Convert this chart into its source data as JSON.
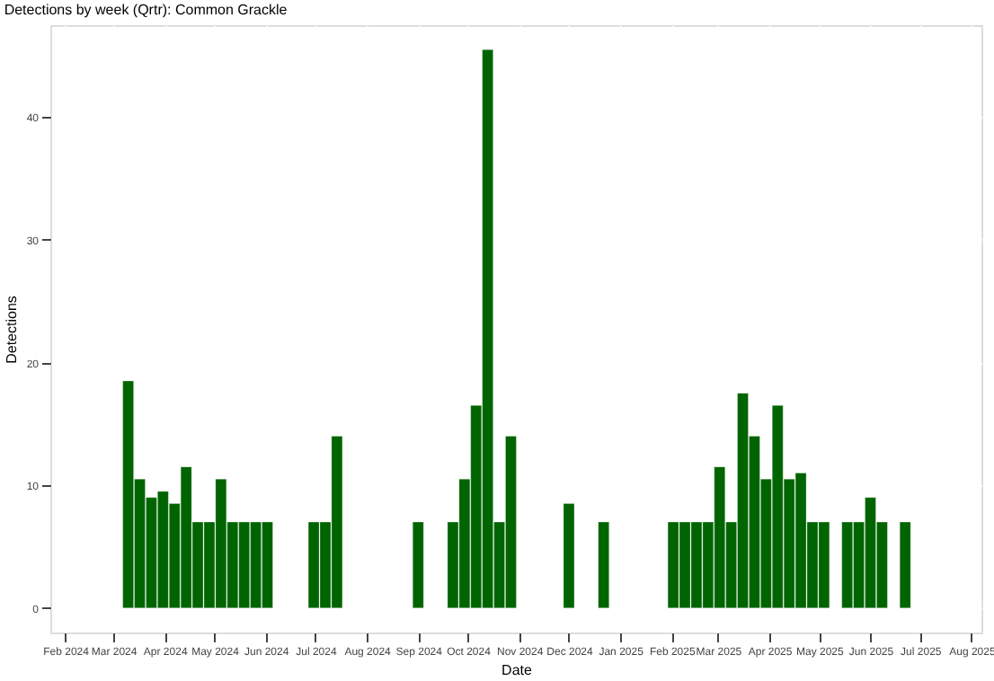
{
  "chart_data": {
    "type": "bar",
    "title": "Detections by week (Qrtr): Common Grackle",
    "xlabel": "Date",
    "ylabel": "Detections",
    "x": [
      "2024-03-10",
      "2024-03-17",
      "2024-03-24",
      "2024-03-31",
      "2024-04-07",
      "2024-04-14",
      "2024-04-21",
      "2024-04-28",
      "2024-05-05",
      "2024-05-12",
      "2024-05-19",
      "2024-05-26",
      "2024-06-02",
      "2024-06-30",
      "2024-07-07",
      "2024-07-14",
      "2024-09-01",
      "2024-09-22",
      "2024-09-29",
      "2024-10-06",
      "2024-10-13",
      "2024-10-20",
      "2024-10-27",
      "2024-12-01",
      "2024-12-22",
      "2025-02-02",
      "2025-02-09",
      "2025-02-16",
      "2025-02-23",
      "2025-03-02",
      "2025-03-09",
      "2025-03-16",
      "2025-03-23",
      "2025-03-30",
      "2025-04-06",
      "2025-04-13",
      "2025-04-20",
      "2025-04-27",
      "2025-05-04",
      "2025-05-18",
      "2025-05-25",
      "2025-06-01",
      "2025-06-08",
      "2025-06-22"
    ],
    "values": [
      18.5,
      10.5,
      9,
      9.5,
      8.5,
      11.5,
      7,
      7,
      10.5,
      7,
      7,
      7,
      7,
      7,
      7,
      14,
      7,
      7,
      10.5,
      16.5,
      45.5,
      7,
      14,
      8.5,
      7,
      7,
      7,
      7,
      7,
      11.5,
      7,
      17.5,
      14,
      10.5,
      16.5,
      10.5,
      11,
      7,
      7,
      7,
      7,
      9,
      7,
      7
    ],
    "color": "#006400",
    "xlim": [
      "2024-01-23",
      "2025-08-07"
    ],
    "xticks": [
      {
        "value": "2024-02-01",
        "label": "Feb 2024"
      },
      {
        "value": "2024-03-01",
        "label": "Mar 2024"
      },
      {
        "value": "2024-04-01",
        "label": "Apr 2024"
      },
      {
        "value": "2024-05-01",
        "label": "May 2024"
      },
      {
        "value": "2024-06-01",
        "label": "Jun 2024"
      },
      {
        "value": "2024-07-01",
        "label": "Jul 2024"
      },
      {
        "value": "2024-08-01",
        "label": "Aug 2024"
      },
      {
        "value": "2024-09-01",
        "label": "Sep 2024"
      },
      {
        "value": "2024-10-01",
        "label": "Oct 2024"
      },
      {
        "value": "2024-11-01",
        "label": "Nov 2024"
      },
      {
        "value": "2024-12-01",
        "label": "Dec 2024"
      },
      {
        "value": "2025-01-01",
        "label": "Jan 2025"
      },
      {
        "value": "2025-02-01",
        "label": "Feb 2025"
      },
      {
        "value": "2025-03-01",
        "label": "Mar 2025"
      },
      {
        "value": "2025-04-01",
        "label": "Apr 2025"
      },
      {
        "value": "2025-05-01",
        "label": "May 2025"
      },
      {
        "value": "2025-06-01",
        "label": "Jun 2025"
      },
      {
        "value": "2025-07-01",
        "label": "Jul 2025"
      },
      {
        "value": "2025-08-01",
        "label": "Aug 2025"
      }
    ],
    "ylim": [
      -2,
      47.5
    ],
    "yticks": [
      0,
      10,
      20,
      30,
      40
    ],
    "grid": true
  }
}
